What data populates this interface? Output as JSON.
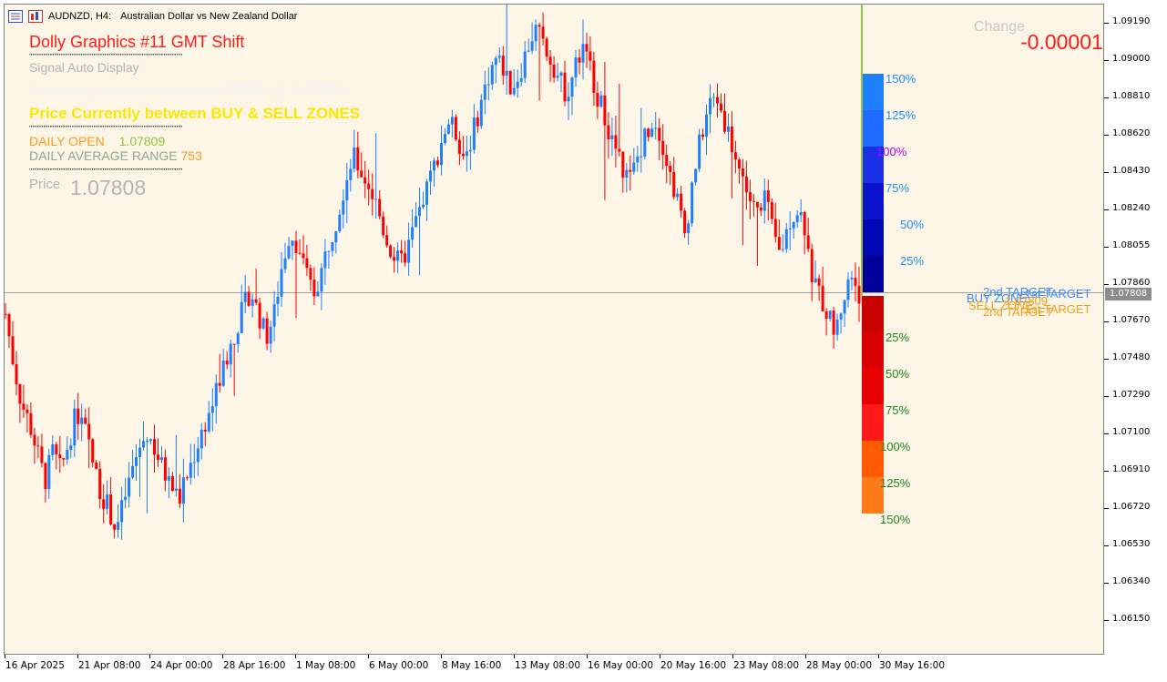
{
  "title_bar": {
    "symbol": "AUDNZD, H4:",
    "description": "Australian Dollar vs New Zealand Dollar"
  },
  "overlay": {
    "indicator_name": "Dolly Graphics #11 GMT Shift",
    "signal": "Signal Auto Display",
    "caution": "Caution possible reversal  OPEN @ 1.07809",
    "zone_status": "Price Currently between BUY & SELL ZONES",
    "daily_open_label": "DAILY OPEN",
    "daily_open_value": "1.07809",
    "dar_label": "DAILY AVERAGE RANGE",
    "dar_value": "753",
    "price_label": "Price",
    "price_value": "1.07808",
    "change_label": "Change",
    "change_value": "-0.00001",
    "dots": "''''''''''''''''''''''''''''''''''''''''''''''''''''''''''''''''''''''''''''''''''''''''''''''''''"
  },
  "zones": {
    "buy_pcts": [
      "150%",
      "125%",
      "100%",
      "75%",
      "50%",
      "25%"
    ],
    "sell_pcts": [
      "25%",
      "50%",
      "75%",
      "100%",
      "125%",
      "150%"
    ],
    "targets": [
      "2nd TARGET",
      "BUY ZONE",
      "1st TARGET",
      "SELL ZONE",
      "1st TARGET",
      "2nd TARGET",
      "1.07809"
    ],
    "buy_colors": [
      "#1e7fff",
      "#1e6cff",
      "#1a2fe6",
      "#0a12cc",
      "#0008b4",
      "#00009a"
    ],
    "sell_colors": [
      "#c80000",
      "#d80000",
      "#e60000",
      "#ff1a1a",
      "#ff5a00",
      "#ff7a1a"
    ]
  },
  "price_axis": {
    "ticks": [
      "1.09190",
      "1.09000",
      "1.08810",
      "1.08620",
      "1.08430",
      "1.08240",
      "1.08055",
      "1.07860",
      "1.07670",
      "1.07480",
      "1.07290",
      "1.07100",
      "1.06910",
      "1.06720",
      "1.06530",
      "1.06340",
      "1.06150"
    ],
    "current": "1.07808"
  },
  "time_axis": {
    "ticks": [
      "16 Apr 2025",
      "21 Apr 08:00",
      "24 Apr 00:00",
      "28 Apr 16:00",
      "1 May 08:00",
      "6 May 00:00",
      "8 May 16:00",
      "13 May 08:00",
      "16 May 00:00",
      "20 May 16:00",
      "23 May 08:00",
      "28 May 00:00",
      "30 May 16:00"
    ]
  },
  "chart_data": {
    "type": "candlestick",
    "symbol": "AUDNZD",
    "timeframe": "H4",
    "bull_color": "#1e7fff",
    "bear_color": "#ff0000",
    "last_price": 1.07808,
    "daily_open": 1.07809,
    "path": [
      1.077,
      1.0745,
      1.0725,
      1.0715,
      1.07,
      1.0685,
      1.07,
      1.069,
      1.0705,
      1.072,
      1.0712,
      1.0695,
      1.068,
      1.0672,
      1.066,
      1.0675,
      1.069,
      1.0702,
      1.071,
      1.07,
      1.069,
      1.0682,
      1.0676,
      1.0688,
      1.07,
      1.0712,
      1.0722,
      1.0735,
      1.0748,
      1.076,
      1.0772,
      1.0782,
      1.077,
      1.0758,
      1.077,
      1.0795,
      1.0812,
      1.0805,
      1.079,
      1.078,
      1.0792,
      1.0808,
      1.082,
      1.0838,
      1.085,
      1.0842,
      1.0835,
      1.0825,
      1.081,
      1.08,
      1.0795,
      1.0805,
      1.0818,
      1.083,
      1.0842,
      1.0856,
      1.0868,
      1.0862,
      1.085,
      1.086,
      1.0875,
      1.089,
      1.09,
      1.0895,
      1.0885,
      1.0892,
      1.0905,
      1.0915,
      1.0908,
      1.09,
      1.089,
      1.0882,
      1.0895,
      1.0905,
      1.0895,
      1.088,
      1.0868,
      1.0855,
      1.0845,
      1.0838,
      1.085,
      1.0862,
      1.087,
      1.086,
      1.0842,
      1.0828,
      1.081,
      1.084,
      1.086,
      1.0876,
      1.088,
      1.0868,
      1.0855,
      1.0842,
      1.083,
      1.082,
      1.0832,
      1.0812,
      1.08,
      1.0815,
      1.0825,
      1.0818,
      1.079,
      1.078,
      1.077,
      1.076,
      1.0778,
      1.079,
      1.0781
    ]
  }
}
